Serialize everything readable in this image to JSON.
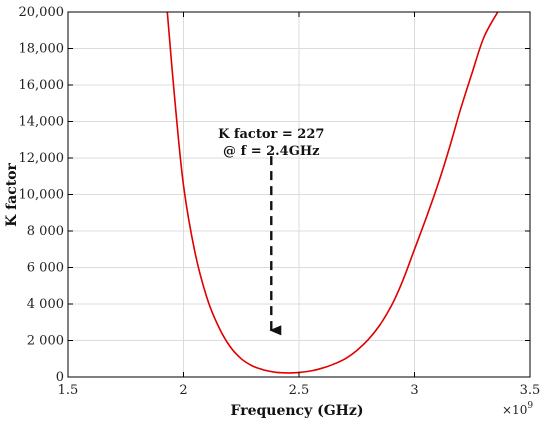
{
  "chart_data": {
    "type": "line",
    "title": "",
    "xlabel": "Frequency (GHz)",
    "ylabel": "K factor",
    "x_multiplier_label": "×10",
    "x_multiplier_exp": "9",
    "xlim": [
      1500000000.0,
      3500000000.0
    ],
    "ylim": [
      0,
      20000
    ],
    "grid": true,
    "xticks": [
      1500000000.0,
      2000000000.0,
      2500000000.0,
      3000000000.0,
      3500000000.0
    ],
    "xtick_labels": [
      "1.5",
      "2",
      "2.5",
      "3",
      "3.5"
    ],
    "yticks": [
      0,
      2000,
      4000,
      6000,
      8000,
      10000,
      12000,
      14000,
      16000,
      18000,
      20000
    ],
    "ytick_labels": [
      "0",
      "2 000",
      "4 000",
      "6 000",
      "8 000",
      "10,000",
      "12,000",
      "14,000",
      "16,000",
      "18,000",
      "20,000"
    ],
    "series": [
      {
        "color": "#e00000",
        "x": [
          1930000000.0,
          1960000000.0,
          2000000000.0,
          2050000000.0,
          2100000000.0,
          2150000000.0,
          2200000000.0,
          2250000000.0,
          2300000000.0,
          2350000000.0,
          2400000000.0,
          2450000000.0,
          2500000000.0,
          2550000000.0,
          2600000000.0,
          2650000000.0,
          2700000000.0,
          2750000000.0,
          2800000000.0,
          2850000000.0,
          2900000000.0,
          2950000000.0,
          3000000000.0,
          3050000000.0,
          3100000000.0,
          3150000000.0,
          3200000000.0,
          3250000000.0,
          3300000000.0,
          3360000000.0
        ],
        "y": [
          20000,
          15500,
          10500,
          6800,
          4400,
          2800,
          1700,
          1000,
          600,
          380,
          260,
          227,
          250,
          330,
          480,
          700,
          1000,
          1450,
          2050,
          2850,
          3900,
          5300,
          7000,
          8700,
          10500,
          12500,
          14700,
          16700,
          18600,
          20000
        ]
      }
    ],
    "annotations": [
      {
        "lines": [
          "K factor = 227",
          "@ f = 2.4GHz"
        ],
        "arrow_x": 2380000000.0,
        "arrow_from_y": 12100,
        "arrow_to_y": 1900
      }
    ]
  }
}
